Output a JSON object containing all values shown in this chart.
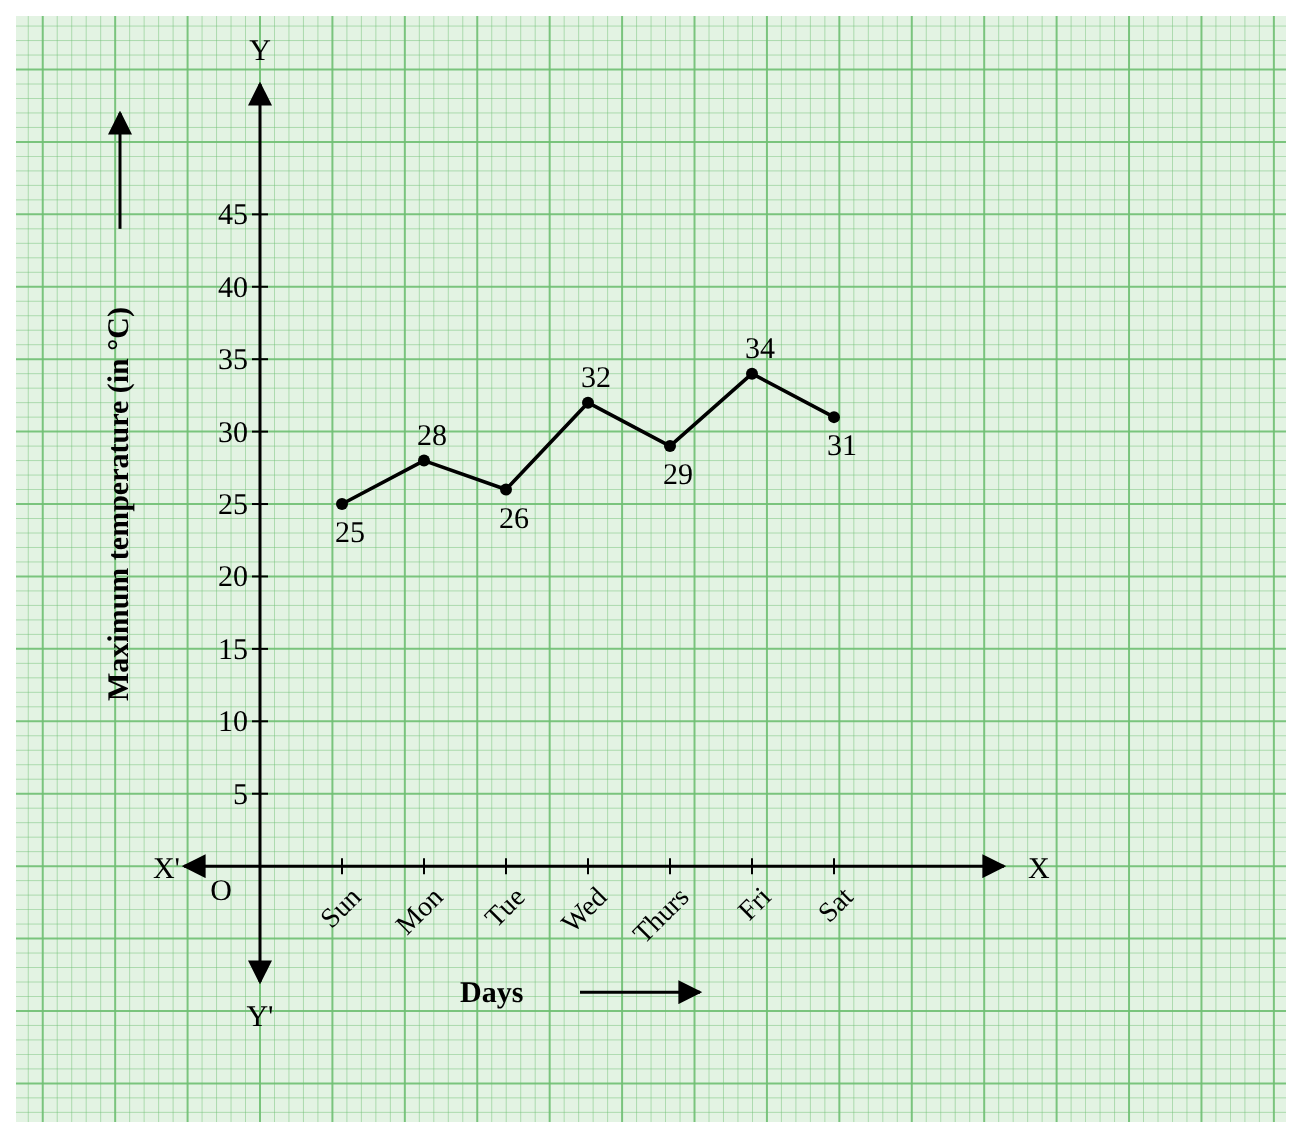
{
  "chart_data": {
    "type": "line",
    "xlabel": "Days",
    "ylabel": "Maximum temperature (in °C)",
    "categories": [
      "Sun",
      "Mon",
      "Tue",
      "Wed",
      "Thurs",
      "Fri",
      "Sat"
    ],
    "series": [
      {
        "color": "#000000",
        "values": [
          25,
          28,
          26,
          32,
          29,
          34,
          31
        ]
      }
    ],
    "ylim": [
      -8,
      54
    ],
    "yticks": [
      5,
      10,
      15,
      20,
      25,
      30,
      35,
      40,
      45
    ],
    "annotations": [
      "X'",
      "X",
      "Y",
      "Y'",
      "O"
    ],
    "data_labels": true,
    "grid": true,
    "marker": "circle",
    "line_style": "solid"
  }
}
